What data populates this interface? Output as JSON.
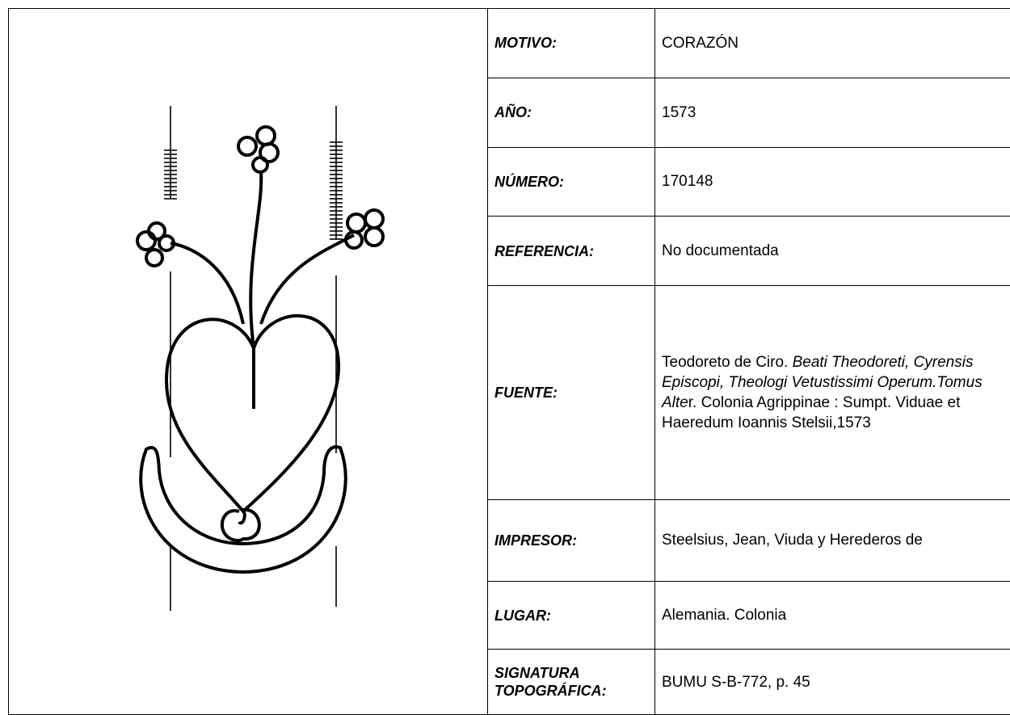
{
  "rows": [
    {
      "label": "MOTIVO:",
      "value": "CORAZÓN"
    },
    {
      "label": "AÑO:",
      "value": "1573"
    },
    {
      "label": "NÚMERO:",
      "value": "170148"
    },
    {
      "label": "REFERENCIA:",
      "value": "No documentada"
    },
    {
      "label": "FUENTE:",
      "parts": [
        {
          "text": "Teodoreto de Ciro. ",
          "italic": false
        },
        {
          "text": "Beati Theodoreti, Cyrensis Episcopi, Theologi Vetustissimi Operum.Tomus Alte",
          "italic": true
        },
        {
          "text": "r. Colonia Agrippinae : Sumpt. Viduae et Haeredum Ioannis Stelsii,1573",
          "italic": false
        }
      ]
    },
    {
      "label": "IMPRESOR:",
      "value": "Steelsius, Jean, Viuda y Herederos de"
    },
    {
      "label": "LUGAR:",
      "value": "Alemania. Colonia"
    },
    {
      "label": "SIGNATURA TOPOGRÁFICA:",
      "value": "BUMU S-B-772, p. 45"
    }
  ]
}
